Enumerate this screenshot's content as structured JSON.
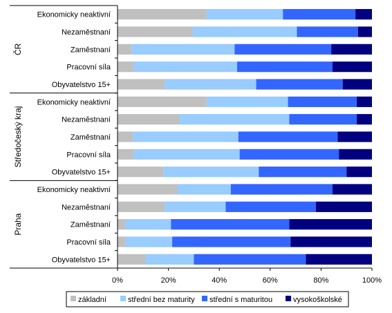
{
  "chart_data": {
    "type": "bar",
    "orientation": "horizontal",
    "stacked": "percent",
    "xlim": [
      0,
      100
    ],
    "x_ticks": [
      "0%",
      "20%",
      "40%",
      "60%",
      "80%",
      "100%"
    ],
    "legend_position": "bottom",
    "grid": false,
    "series_colors": [
      "#C0C0C0",
      "#99CCFF",
      "#3366FF",
      "#000080"
    ],
    "series_names": [
      "základní",
      "střední bez maturity",
      "střední s maturitou",
      "vysokoškolské"
    ],
    "groups": [
      {
        "name": "ČR",
        "categories": [
          "Ekonomicky neaktivní",
          "Nezaměstnaní",
          "Zaměstnaní",
          "Pracovní síla",
          "Obyvatelstvo 15+"
        ],
        "values": [
          [
            35,
            30,
            28.5,
            6.5
          ],
          [
            29.5,
            41,
            24,
            5.5
          ],
          [
            5.5,
            40.5,
            38,
            16
          ],
          [
            6.5,
            40.5,
            37.5,
            15.5
          ],
          [
            18.5,
            36,
            34,
            11.5
          ]
        ]
      },
      {
        "name": "Středočeský kraj",
        "categories": [
          "Ekonomicky neaktivní",
          "Nezaměstnaní",
          "Zaměstnaní",
          "Pracovní síla",
          "Obyvatelstvo 15+"
        ],
        "values": [
          [
            35,
            32,
            27,
            6
          ],
          [
            24.5,
            43,
            26.5,
            6
          ],
          [
            6,
            41.5,
            39,
            13.5
          ],
          [
            6.5,
            41.5,
            39,
            13
          ],
          [
            18,
            37.5,
            34.5,
            10
          ]
        ]
      },
      {
        "name": "Praha",
        "categories": [
          "Ekonomicky neaktivní",
          "Nezaměstnaní",
          "Zaměstnaní",
          "Pracovní síla",
          "Obyvatelstvo 15+"
        ],
        "values": [
          [
            23.5,
            21,
            40,
            15.5
          ],
          [
            18.5,
            24,
            35.5,
            22
          ],
          [
            3,
            18,
            46.5,
            32.5
          ],
          [
            3,
            18.5,
            46.5,
            32
          ],
          [
            11,
            19,
            44,
            26
          ]
        ]
      }
    ]
  }
}
